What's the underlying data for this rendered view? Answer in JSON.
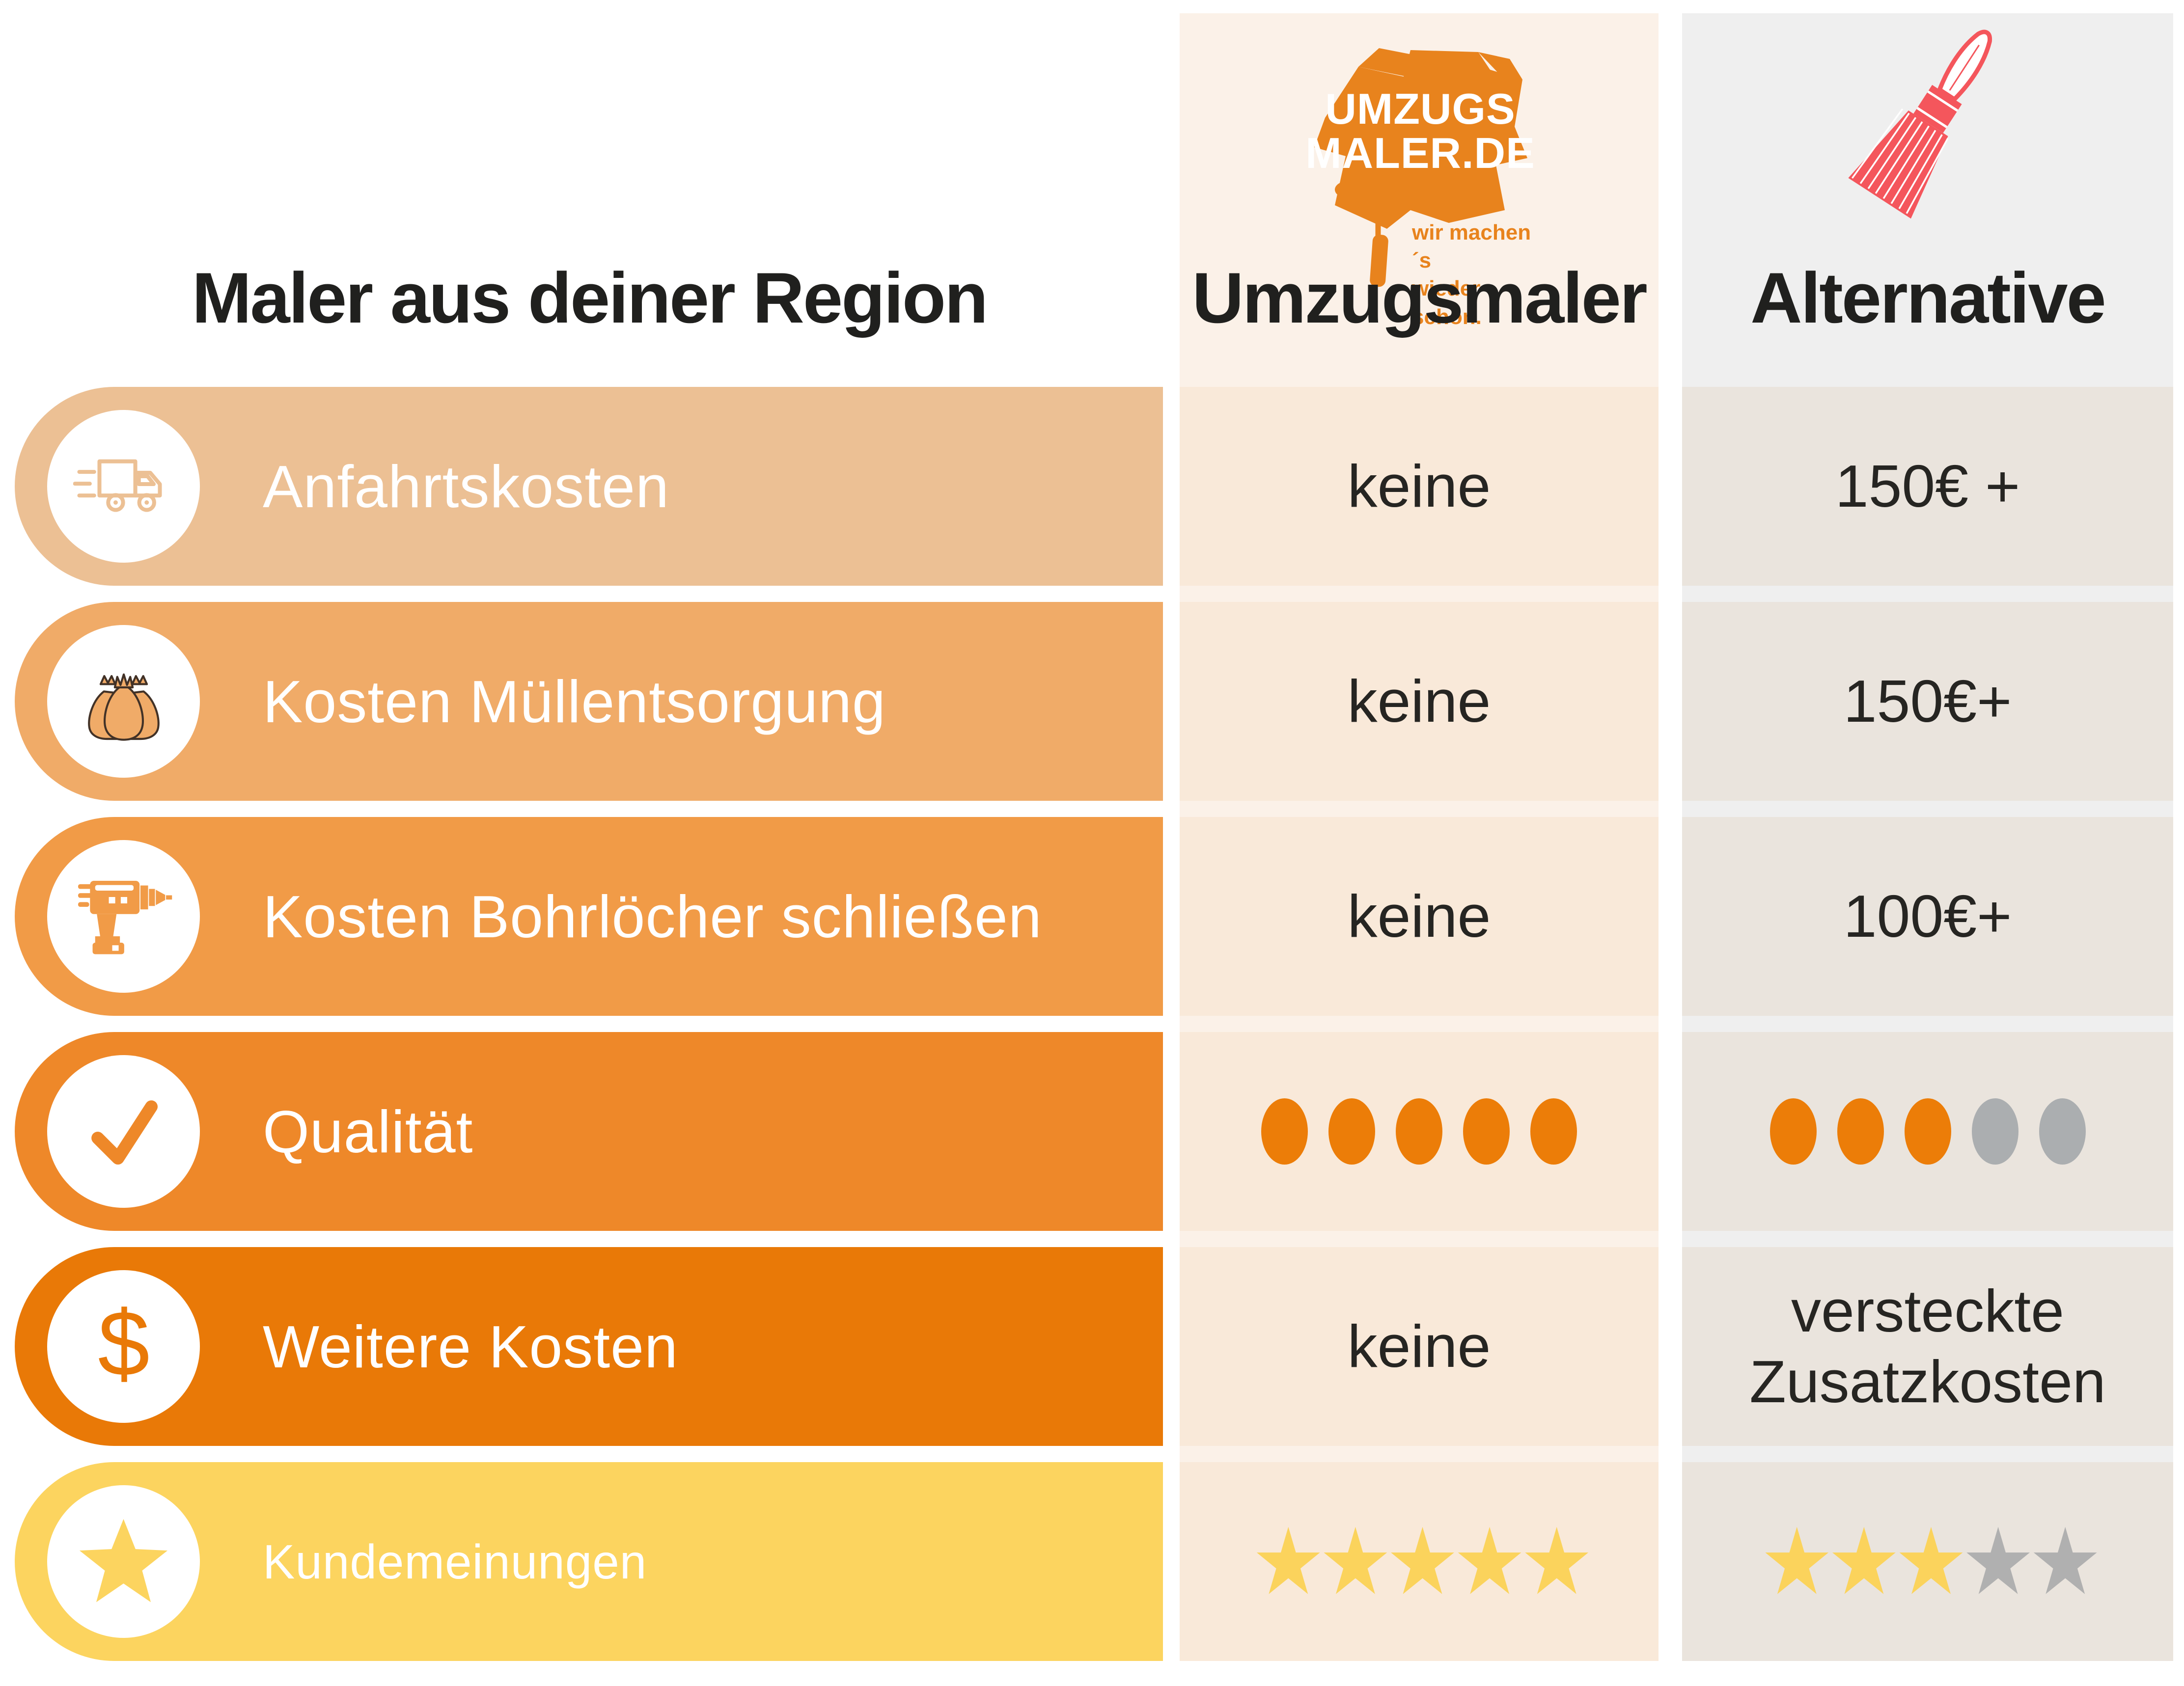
{
  "header": {
    "left_title": "Maler aus deiner Region",
    "columns": [
      {
        "id": "umzugsmaler",
        "label": "Umzugsmaler",
        "icon": "umzugsmaler-logo",
        "logo": {
          "line1": "UMZUGS",
          "line2": "MALER.DE",
          "tagline_line1": "wir machen´s",
          "tagline_line2": "wieder schön."
        }
      },
      {
        "id": "alternative",
        "label": "Alternative",
        "icon": "paintbrush-icon"
      }
    ]
  },
  "rows": [
    {
      "label": "Anfahrtskosten",
      "icon": "truck-icon",
      "pill_color": "#ECC094",
      "umzugsmaler": {
        "type": "text",
        "value": "keine"
      },
      "alternative": {
        "type": "text",
        "value": "150€ +"
      }
    },
    {
      "label": "Kosten Müllentsorgung",
      "icon": "trash-bag-icon",
      "pill_color": "#F0AB68",
      "umzugsmaler": {
        "type": "text",
        "value": "keine"
      },
      "alternative": {
        "type": "text",
        "value": "150€+"
      }
    },
    {
      "label": "Kosten Bohrlöcher schließen",
      "icon": "drill-icon",
      "pill_color": "#F19B47",
      "umzugsmaler": {
        "type": "text",
        "value": "keine"
      },
      "alternative": {
        "type": "text",
        "value": "100€+"
      }
    },
    {
      "label": "Qualität",
      "icon": "checkmark-icon",
      "pill_color": "#EE8829",
      "umzugsmaler": {
        "type": "dots",
        "filled": 5,
        "total": 5
      },
      "alternative": {
        "type": "dots",
        "filled": 3,
        "total": 5
      }
    },
    {
      "label": "Weitere Kosten",
      "icon": "dollar-icon",
      "pill_color": "#E97907",
      "umzugsmaler": {
        "type": "text",
        "value": "keine"
      },
      "alternative": {
        "type": "text",
        "value": "versteckte Zusatzkosten"
      }
    },
    {
      "label": "Kundemeinungen",
      "icon": "star-icon",
      "pill_color": "#FCD45F",
      "umzugsmaler": {
        "type": "stars",
        "filled": 5,
        "total": 5
      },
      "alternative": {
        "type": "stars",
        "filled": 3,
        "total": 5
      }
    }
  ],
  "colors": {
    "brand_orange": "#E8831D",
    "brush_red": "#F4565C",
    "text_dark": "#20201E",
    "row_label_text": "#FFFFFF",
    "mid_band": "#FBF1E8",
    "mid_cell": "#F9E9D9",
    "right_band": "#EFEFEF",
    "right_cell": "#EAE4DD",
    "dot_active": "#EC7D08",
    "dot_inactive": "#ABAEB0",
    "star_active": "#FBD35C",
    "star_inactive": "#B0B0B0"
  }
}
